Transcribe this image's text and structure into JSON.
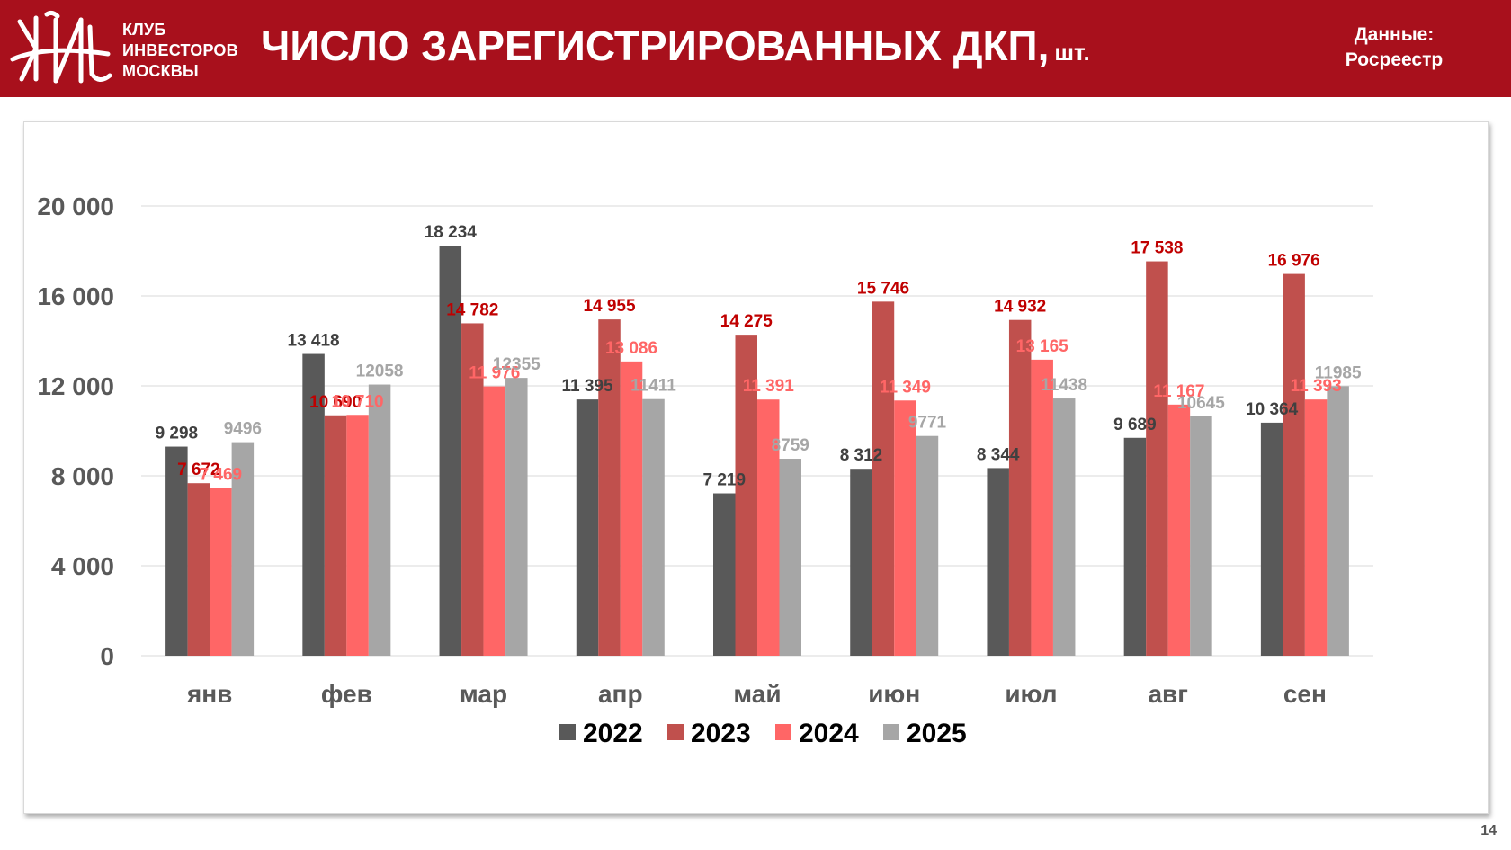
{
  "header": {
    "org_lines": [
      "КЛУБ",
      "ИНВЕСТОРОВ",
      "МОСКВЫ"
    ],
    "title": "ЧИСЛО ЗАРЕГИСТРИРОВАННЫХ ДКП,",
    "title_unit": "шт.",
    "source_lines": [
      "Данные:",
      "Росреестр"
    ]
  },
  "colors": {
    "brand": "#a8101c",
    "series": [
      "#595959",
      "#c0504d",
      "#ff6666",
      "#a6a6a6"
    ],
    "labels": [
      "#404040",
      "#c00000",
      "#ff6666",
      "#a6a6a6"
    ]
  },
  "chart_data": {
    "type": "bar",
    "categories": [
      "янв",
      "фев",
      "мар",
      "апр",
      "май",
      "июн",
      "июл",
      "авг",
      "сен"
    ],
    "series": [
      {
        "name": "2022",
        "values": [
          9298,
          13418,
          18234,
          11395,
          7219,
          8312,
          8344,
          9689,
          10364
        ],
        "labels": [
          "9 298",
          "13 418",
          "18 234",
          "11 395",
          "7 219",
          "8 312",
          "8 344",
          "9 689",
          "10 364"
        ]
      },
      {
        "name": "2023",
        "values": [
          7672,
          10690,
          14782,
          14955,
          14275,
          15746,
          14932,
          17538,
          16976
        ],
        "labels": [
          "7 672",
          "10 690",
          "14 782",
          "14 955",
          "14 275",
          "15 746",
          "14 932",
          "17 538",
          "16 976"
        ]
      },
      {
        "name": "2024",
        "values": [
          7469,
          10710,
          11976,
          13086,
          11391,
          11349,
          13165,
          11167,
          11393
        ],
        "labels": [
          "7 469",
          "10 710",
          "11 976",
          "13 086",
          "11 391",
          "11 349",
          "13 165",
          "11 167",
          "11 393"
        ]
      },
      {
        "name": "2025",
        "values": [
          9496,
          12058,
          12355,
          11411,
          8759,
          9771,
          11438,
          10645,
          11985
        ],
        "labels": [
          "9496",
          "12058",
          "12355",
          "11411",
          "8759",
          "9771",
          "11438",
          "10645",
          "11985"
        ]
      }
    ],
    "yticks": [
      0,
      4000,
      8000,
      12000,
      16000,
      20000
    ],
    "ytick_labels": [
      "0",
      "4 000",
      "8 000",
      "12 000",
      "16 000",
      "20 000"
    ],
    "ylim": [
      0,
      20000
    ],
    "grid": true,
    "legend_position": "bottom"
  },
  "page_number": "14"
}
